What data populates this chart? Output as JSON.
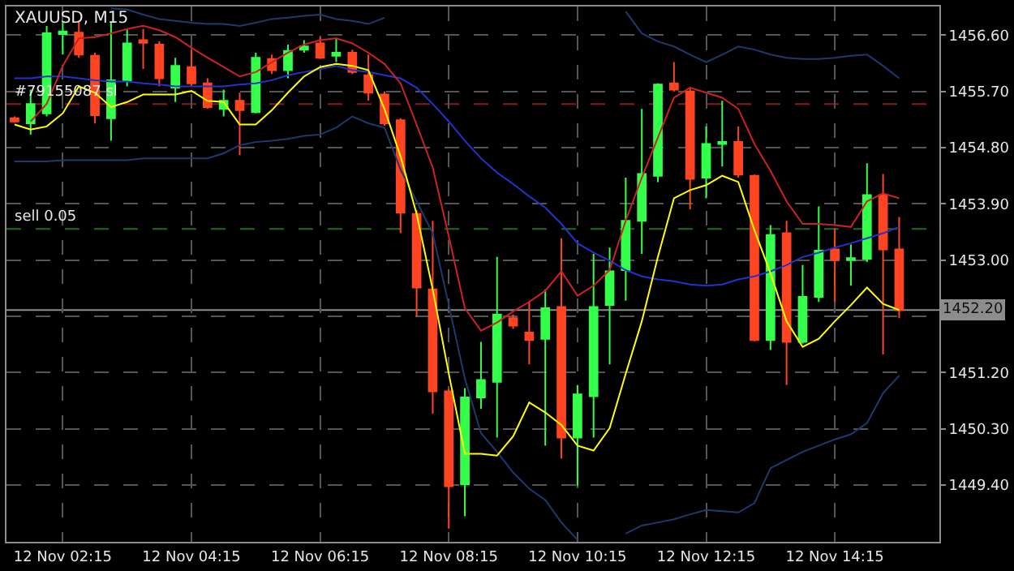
{
  "chart_data": {
    "type": "candlestick",
    "title": "XAUUSD, M15",
    "categories": [
      null,
      null,
      null,
      "12 Nov 02:15",
      null,
      null,
      null,
      null,
      null,
      null,
      null,
      "12 Nov 04:15",
      null,
      null,
      null,
      null,
      null,
      null,
      null,
      "12 Nov 06:15",
      null,
      null,
      null,
      null,
      null,
      null,
      null,
      "12 Nov 08:15",
      null,
      null,
      null,
      null,
      null,
      null,
      null,
      "12 Nov 10:15",
      null,
      null,
      null,
      null,
      null,
      null,
      null,
      "12 Nov 12:15",
      null,
      null,
      null,
      null,
      null,
      null,
      null,
      "12 Nov 14:15",
      null,
      null,
      null,
      null
    ],
    "ohlc": [
      [
        1455.27,
        1455.3,
        1455.2,
        1455.22
      ],
      [
        1455.19,
        1455.73,
        1455.01,
        1455.5
      ],
      [
        1455.35,
        1456.75,
        1455.3,
        1456.63
      ],
      [
        1456.62,
        1456.8,
        1456.29,
        1456.66
      ],
      [
        1456.64,
        1456.83,
        1456.24,
        1456.29
      ],
      [
        1456.27,
        1456.32,
        1455.19,
        1455.32
      ],
      [
        1455.27,
        1456.8,
        1454.91,
        1455.88
      ],
      [
        1455.88,
        1456.7,
        1455.78,
        1456.47
      ],
      [
        1456.52,
        1456.7,
        1456.06,
        1456.48
      ],
      [
        1456.45,
        1456.5,
        1455.78,
        1455.91
      ],
      [
        1455.76,
        1456.24,
        1455.53,
        1456.11
      ],
      [
        1456.09,
        1456.37,
        1455.78,
        1455.83
      ],
      [
        1455.83,
        1455.91,
        1455.42,
        1455.45
      ],
      [
        1455.42,
        1455.73,
        1455.3,
        1455.55
      ],
      [
        1455.55,
        1455.68,
        1454.68,
        1455.4
      ],
      [
        1455.37,
        1456.32,
        1455.35,
        1456.24
      ],
      [
        1456.22,
        1456.29,
        1455.98,
        1456.04
      ],
      [
        1456.04,
        1456.45,
        1455.91,
        1456.35
      ],
      [
        1456.37,
        1456.52,
        1456.32,
        1456.42
      ],
      [
        1456.47,
        1456.57,
        1456.22,
        1456.24
      ],
      [
        1456.27,
        1456.55,
        1456.17,
        1456.32
      ],
      [
        1456.32,
        1456.37,
        1455.98,
        1456.01
      ],
      [
        1455.96,
        1456.29,
        1455.55,
        1455.68
      ],
      [
        1455.65,
        1455.7,
        1455.15,
        1455.19
      ],
      [
        1455.24,
        1455.27,
        1453.43,
        1453.76
      ],
      [
        1453.74,
        1453.8,
        1452.1,
        1452.56
      ],
      [
        1452.53,
        1453.63,
        1450.54,
        1450.9
      ],
      [
        1450.9,
        1450.94,
        1448.7,
        1449.38
      ],
      [
        1449.41,
        1450.95,
        1448.9,
        1450.8
      ],
      [
        1450.8,
        1451.69,
        1450.62,
        1451.08
      ],
      [
        1451.05,
        1453.05,
        1450.16,
        1452.13
      ],
      [
        1452.07,
        1452.13,
        1451.9,
        1451.95
      ],
      [
        1451.84,
        1452.35,
        1451.33,
        1451.72
      ],
      [
        1451.74,
        1452.53,
        1450.03,
        1452.23
      ],
      [
        1452.25,
        1453.35,
        1449.82,
        1450.16
      ],
      [
        1450.16,
        1451.0,
        1449.39,
        1450.85
      ],
      [
        1450.82,
        1453.1,
        1450.16,
        1452.25
      ],
      [
        1452.28,
        1453.2,
        1451.33,
        1452.82
      ],
      [
        1452.84,
        1454.32,
        1452.35,
        1453.63
      ],
      [
        1453.63,
        1455.42,
        1453.1,
        1454.38
      ],
      [
        1454.35,
        1455.83,
        1454.25,
        1455.81
      ],
      [
        1455.83,
        1456.17,
        1455.7,
        1455.73
      ],
      [
        1455.7,
        1455.75,
        1453.81,
        1454.3
      ],
      [
        1454.32,
        1455.14,
        1453.99,
        1454.86
      ],
      [
        1454.86,
        1455.55,
        1454.5,
        1454.89
      ],
      [
        1454.89,
        1455.14,
        1454.32,
        1454.37
      ],
      [
        1454.35,
        1454.37,
        1451.7,
        1451.72
      ],
      [
        1451.72,
        1453.56,
        1451.56,
        1453.4
      ],
      [
        1453.43,
        1453.63,
        1451.0,
        1451.69
      ],
      [
        1451.69,
        1452.92,
        1451.66,
        1452.41
      ],
      [
        1452.41,
        1453.86,
        1452.33,
        1453.15
      ],
      [
        1453.17,
        1453.51,
        1452.33,
        1453.0
      ],
      [
        1453.0,
        1453.25,
        1452.59,
        1453.03
      ],
      [
        1453.02,
        1454.55,
        1452.97,
        1454.04
      ],
      [
        1454.04,
        1454.38,
        1451.49,
        1453.17
      ],
      [
        1453.17,
        1453.69,
        1452.07,
        1452.2
      ]
    ],
    "colors": [
      "#ff4422",
      "#33ff4a",
      "#33ff4a",
      "#33ff4a",
      "#ff4422",
      "#ff4422",
      "#33ff4a",
      "#33ff4a",
      "#ff4422",
      "#ff4422",
      "#33ff4a",
      "#ff4422",
      "#ff4422",
      "#33ff4a",
      "#ff4422",
      "#33ff4a",
      "#ff4422",
      "#33ff4a",
      "#33ff4a",
      "#ff4422",
      "#33ff4a",
      "#ff4422",
      "#ff4422",
      "#ff4422",
      "#ff4422",
      "#ff4422",
      "#ff4422",
      "#ff4422",
      "#33ff4a",
      "#33ff4a",
      "#33ff4a",
      "#ff4422",
      "#ff4422",
      "#33ff4a",
      "#ff4422",
      "#33ff4a",
      "#33ff4a",
      "#33ff4a",
      "#33ff4a",
      "#33ff4a",
      "#33ff4a",
      "#ff4422",
      "#ff4422",
      "#33ff4a",
      "#33ff4a",
      "#ff4422",
      "#ff4422",
      "#33ff4a",
      "#ff4422",
      "#33ff4a",
      "#33ff4a",
      "#ff4422",
      "#33ff4a",
      "#33ff4a",
      "#ff4422",
      "#ff4422"
    ],
    "series": [
      {
        "type": "line",
        "color": "#1c3a6e",
        "values": [
          null,
          null,
          null,
          null,
          null,
          null,
          1457.03,
          1457.01,
          1456.93,
          1456.86,
          1456.83,
          1456.8,
          1456.78,
          1456.78,
          1456.75,
          1456.8,
          1456.86,
          1456.88,
          1456.91,
          1456.93,
          1456.86,
          1456.83,
          1456.78,
          1456.88,
          null,
          null,
          null,
          null,
          null,
          null,
          null,
          null,
          null,
          null,
          null,
          null,
          null,
          null,
          1456.98,
          1456.63,
          1456.5,
          1456.42,
          1456.29,
          1456.17,
          1456.29,
          1456.42,
          1456.37,
          1456.29,
          1456.24,
          1456.22,
          1456.22,
          1456.24,
          1456.27,
          1456.29,
          1456.11,
          1455.91
        ]
      },
      {
        "type": "line",
        "color": "#1c3a6e",
        "values": [
          1454.58,
          1454.58,
          1454.58,
          1454.6,
          1454.6,
          1454.6,
          1454.6,
          1454.6,
          1454.63,
          1454.63,
          1454.63,
          1454.63,
          1454.63,
          1454.71,
          1454.84,
          1454.89,
          1454.91,
          1454.94,
          1454.99,
          1455.01,
          1455.12,
          1455.3,
          1455.19,
          1455.12,
          1454.45,
          1453.94,
          1453.43,
          1452.28,
          1451.1,
          1450.23,
          1449.93,
          1449.6,
          1449.34,
          1449.16,
          1448.8,
          1448.52,
          null,
          null,
          1448.62,
          1448.75,
          1448.8,
          1448.85,
          1448.93,
          1449.0,
          1448.98,
          1448.96,
          1449.11,
          1449.67,
          1449.8,
          1449.93,
          1450.03,
          1450.13,
          1450.21,
          1450.39,
          1450.87,
          1451.15
        ]
      },
      {
        "type": "line",
        "color": "#2233cc",
        "values": [
          1455.91,
          1455.91,
          1455.94,
          1455.94,
          1455.91,
          1455.88,
          1455.86,
          1455.86,
          1455.83,
          1455.81,
          1455.78,
          1455.78,
          1455.78,
          1455.78,
          1455.81,
          1455.83,
          1455.88,
          1455.96,
          1456.01,
          1456.06,
          1456.11,
          1456.04,
          1456.01,
          1455.96,
          1455.91,
          1455.76,
          1455.5,
          1455.22,
          1454.91,
          1454.63,
          1454.4,
          1454.22,
          1454.02,
          1453.84,
          1453.58,
          1453.27,
          1453.12,
          1452.99,
          1452.84,
          1452.74,
          1452.69,
          1452.66,
          1452.61,
          1452.59,
          1452.61,
          1452.69,
          1452.74,
          1452.82,
          1452.92,
          1453.05,
          1453.12,
          1453.2,
          1453.27,
          1453.35,
          1453.43,
          1453.53
        ]
      },
      {
        "type": "line",
        "color": "#cc2222",
        "values": [
          null,
          1455.22,
          1455.5,
          1456.11,
          1456.55,
          1456.57,
          1456.63,
          1456.7,
          1456.75,
          1456.68,
          1456.57,
          1456.4,
          1456.24,
          1456.09,
          1455.94,
          1456.01,
          1456.17,
          1456.32,
          1456.45,
          1456.52,
          1456.55,
          1456.47,
          1456.32,
          1456.14,
          1455.83,
          1455.17,
          1454.48,
          1453.38,
          1452.23,
          1451.87,
          1452.0,
          1452.18,
          1452.33,
          1452.51,
          1452.82,
          1452.43,
          1452.59,
          1452.84,
          1453.63,
          1454.32,
          1454.96,
          1455.6,
          1455.76,
          1455.68,
          1455.6,
          1455.42,
          1454.86,
          1454.43,
          1453.94,
          1453.58,
          1453.58,
          1453.56,
          1453.53,
          1453.94,
          1454.07,
          1453.99
        ]
      },
      {
        "type": "line",
        "color": "#ffff00",
        "values": [
          1455.17,
          1455.09,
          1455.14,
          1455.35,
          1455.78,
          1455.68,
          1455.45,
          1455.53,
          1455.65,
          1455.65,
          1455.65,
          1455.71,
          1455.55,
          1455.53,
          1455.17,
          1455.17,
          1455.4,
          1455.68,
          1455.94,
          1456.09,
          1456.14,
          1456.11,
          1456.04,
          1455.42,
          1454.66,
          1453.74,
          1452.53,
          1451.18,
          1449.9,
          1449.9,
          1449.87,
          1450.18,
          1450.72,
          1450.56,
          1450.36,
          1450.03,
          1449.95,
          1450.31,
          1451.18,
          1452.02,
          1453.05,
          1453.99,
          1454.12,
          1454.2,
          1454.35,
          1454.25,
          1453.48,
          1452.79,
          1452.02,
          1451.61,
          1451.74,
          1452.02,
          1452.28,
          1452.56,
          1452.3,
          1452.2
        ]
      }
    ],
    "ylim": [
      1448.49,
      1457.06
    ],
    "yticks": [
      {
        "value": 1449.4,
        "label": "1449.40"
      },
      {
        "value": 1450.3,
        "label": "1450.30"
      },
      {
        "value": 1451.2,
        "label": "1451.20"
      },
      {
        "value": 1452.1,
        "label": null
      },
      {
        "value": 1453.0,
        "label": "1453.00"
      },
      {
        "value": 1453.9,
        "label": "1453.90"
      },
      {
        "value": 1454.8,
        "label": "1454.80"
      },
      {
        "value": 1455.7,
        "label": "1455.70"
      },
      {
        "value": 1456.6,
        "label": "1456.60"
      }
    ],
    "ref_lines": [
      {
        "axis": "y",
        "value": 1455.5,
        "label": "#79155087 sl",
        "color": "#8b1a1a",
        "line_style": "dashed"
      },
      {
        "axis": "y",
        "value": 1453.5,
        "label": "sell 0.05",
        "color": "#1f6e1f",
        "line_style": "dashed"
      },
      {
        "axis": "y",
        "value": 1452.2,
        "label": "1452.20",
        "color": "#8c8c8c",
        "line_style": "solid"
      }
    ],
    "grid": true
  }
}
